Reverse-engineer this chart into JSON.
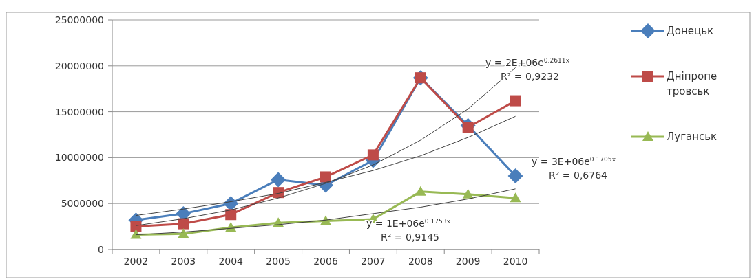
{
  "chart_data": {
    "type": "line",
    "categories": [
      "2002",
      "2003",
      "2004",
      "2005",
      "2006",
      "2007",
      "2008",
      "2009",
      "2010"
    ],
    "series": [
      {
        "name": "Донецьк",
        "color": "#4a7ebb",
        "marker": "diamond",
        "values": [
          3200000,
          3900000,
          5000000,
          7600000,
          7000000,
          9700000,
          18700000,
          13500000,
          8000000
        ]
      },
      {
        "name": "Дніпропетровськ",
        "color": "#be4b48",
        "marker": "square",
        "values": [
          2500000,
          2800000,
          3800000,
          6200000,
          7900000,
          10300000,
          18700000,
          13300000,
          16200000
        ]
      },
      {
        "name": "Луганськ",
        "color": "#98b954",
        "marker": "triangle",
        "values": [
          1600000,
          1700000,
          2400000,
          2900000,
          3100000,
          3300000,
          6300000,
          6000000,
          5600000
        ]
      },
      {
        "color": "#404040",
        "marker": "none",
        "values": [
          3700000,
          4400000,
          5200000,
          6100000,
          7300000,
          8600000,
          10200000,
          12200000,
          14500000
        ]
      },
      {
        "color": "#404040",
        "marker": "none",
        "values": [
          2600000,
          3350000,
          4300000,
          5600000,
          7200000,
          9200000,
          11900000,
          15300000,
          19800000
        ]
      },
      {
        "color": "#404040",
        "marker": "none",
        "values": [
          1600000,
          1900000,
          2300000,
          2700000,
          3200000,
          3900000,
          4600000,
          5500000,
          6600000
        ]
      }
    ],
    "ylim": [
      0,
      25000000
    ],
    "yticks": [
      0,
      5000000,
      10000000,
      15000000,
      20000000,
      25000000
    ],
    "grid": "y",
    "legend": "right",
    "annotations": [
      "y = 2E+06e$^{0.2611x}$",
      "R² = 0,9232",
      "y = 3E+06e$^{0.1705x}$",
      "R² = 0,6764",
      "y = 1E+06e$^{0.1753x}$",
      "R² = 0,9145"
    ]
  }
}
